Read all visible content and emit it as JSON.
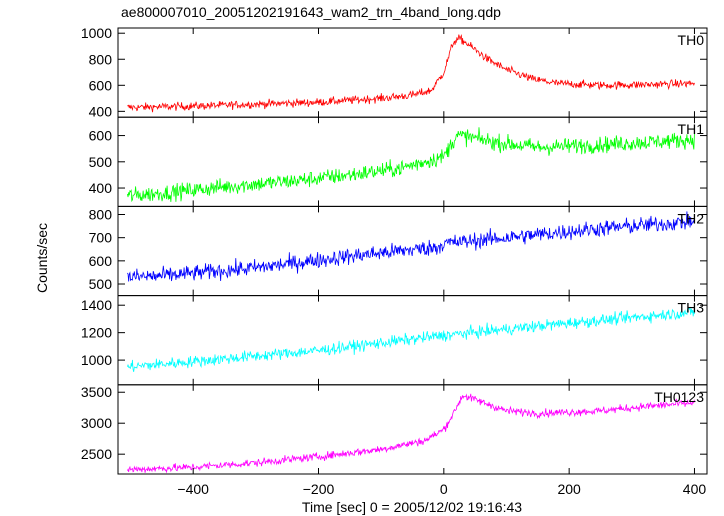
{
  "chart_data": {
    "type": "line",
    "title": "ae800007010_20051202191643_wam2_trn_4band_long.qdp",
    "xlabel": "Time [sec] 0 = 2005/12/02 19:16:43",
    "ylabel": "Counts/sec",
    "xlim": [
      -520,
      420
    ],
    "x_ticks": [
      -400,
      -200,
      0,
      200,
      400
    ],
    "x_tick_labels": [
      "−400",
      "−200",
      "0",
      "200",
      "400"
    ],
    "grid": false,
    "x_range_data": [
      -505,
      400
    ],
    "panels": [
      {
        "name": "TH0",
        "color": "#ff0000",
        "ylim": [
          355,
          1040
        ],
        "y_ticks": [
          400,
          600,
          800,
          1000
        ],
        "noise": 22,
        "profile": [
          [
            -505,
            430
          ],
          [
            -400,
            440
          ],
          [
            -300,
            455
          ],
          [
            -200,
            470
          ],
          [
            -100,
            500
          ],
          [
            -50,
            525
          ],
          [
            -20,
            560
          ],
          [
            0,
            700
          ],
          [
            15,
            930
          ],
          [
            25,
            960
          ],
          [
            40,
            910
          ],
          [
            70,
            800
          ],
          [
            100,
            720
          ],
          [
            140,
            650
          ],
          [
            180,
            615
          ],
          [
            250,
            600
          ],
          [
            320,
            605
          ],
          [
            400,
            615
          ]
        ]
      },
      {
        "name": "TH1",
        "color": "#00ff00",
        "ylim": [
          330,
          670
        ],
        "y_ticks": [
          400,
          500,
          600
        ],
        "noise": 22,
        "profile": [
          [
            -505,
            370
          ],
          [
            -450,
            380
          ],
          [
            -350,
            405
          ],
          [
            -250,
            425
          ],
          [
            -150,
            450
          ],
          [
            -70,
            475
          ],
          [
            0,
            520
          ],
          [
            20,
            600
          ],
          [
            40,
            595
          ],
          [
            80,
            575
          ],
          [
            150,
            555
          ],
          [
            250,
            565
          ],
          [
            400,
            585
          ]
        ]
      },
      {
        "name": "TH2",
        "color": "#0000ff",
        "ylim": [
          450,
          835
        ],
        "y_ticks": [
          500,
          600,
          700,
          800
        ],
        "noise": 25,
        "profile": [
          [
            -505,
            530
          ],
          [
            -450,
            535
          ],
          [
            -300,
            570
          ],
          [
            -150,
            620
          ],
          [
            -10,
            660
          ],
          [
            0,
            675
          ],
          [
            100,
            700
          ],
          [
            250,
            740
          ],
          [
            400,
            770
          ]
        ]
      },
      {
        "name": "TH3",
        "color": "#00ffff",
        "ylim": [
          820,
          1470
        ],
        "y_ticks": [
          1000,
          1200,
          1400
        ],
        "noise": 30,
        "profile": [
          [
            -505,
            950
          ],
          [
            -400,
            990
          ],
          [
            -200,
            1070
          ],
          [
            0,
            1180
          ],
          [
            200,
            1270
          ],
          [
            400,
            1350
          ]
        ]
      },
      {
        "name": "TH0123",
        "color": "#ff00ff",
        "ylim": [
          2180,
          3620
        ],
        "y_ticks": [
          2500,
          3000,
          3500
        ],
        "noise": 45,
        "profile": [
          [
            -505,
            2250
          ],
          [
            -400,
            2290
          ],
          [
            -300,
            2360
          ],
          [
            -200,
            2460
          ],
          [
            -100,
            2580
          ],
          [
            -30,
            2720
          ],
          [
            0,
            2900
          ],
          [
            15,
            3150
          ],
          [
            30,
            3450
          ],
          [
            50,
            3380
          ],
          [
            100,
            3200
          ],
          [
            150,
            3160
          ],
          [
            250,
            3200
          ],
          [
            320,
            3270
          ],
          [
            400,
            3330
          ]
        ]
      }
    ]
  }
}
